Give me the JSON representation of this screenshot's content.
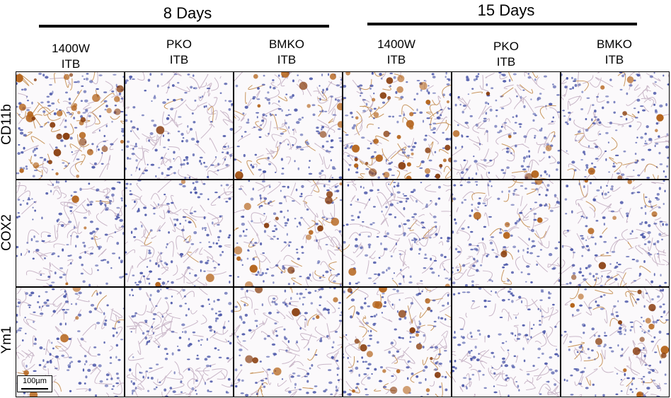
{
  "groups": [
    {
      "title": "8 Days"
    },
    {
      "title": "15 Days"
    }
  ],
  "columns": [
    {
      "top": "1400W",
      "bottom": "ITB"
    },
    {
      "top": "PKO",
      "bottom": "ITB"
    },
    {
      "top": "BMKO",
      "bottom": "ITB"
    },
    {
      "top": "1400W",
      "bottom": "ITB"
    },
    {
      "top": "PKO",
      "bottom": "ITB"
    },
    {
      "top": "BMKO",
      "bottom": "ITB"
    }
  ],
  "rows": [
    {
      "label": "CD11b"
    },
    {
      "label": "COX2"
    },
    {
      "label": "Ym1"
    }
  ],
  "scale_bar": {
    "label": "100µm"
  },
  "stain_colors": {
    "hematoxylin": "#4a56a8",
    "dab": "#b5651d",
    "background": "#fbf9fb"
  }
}
